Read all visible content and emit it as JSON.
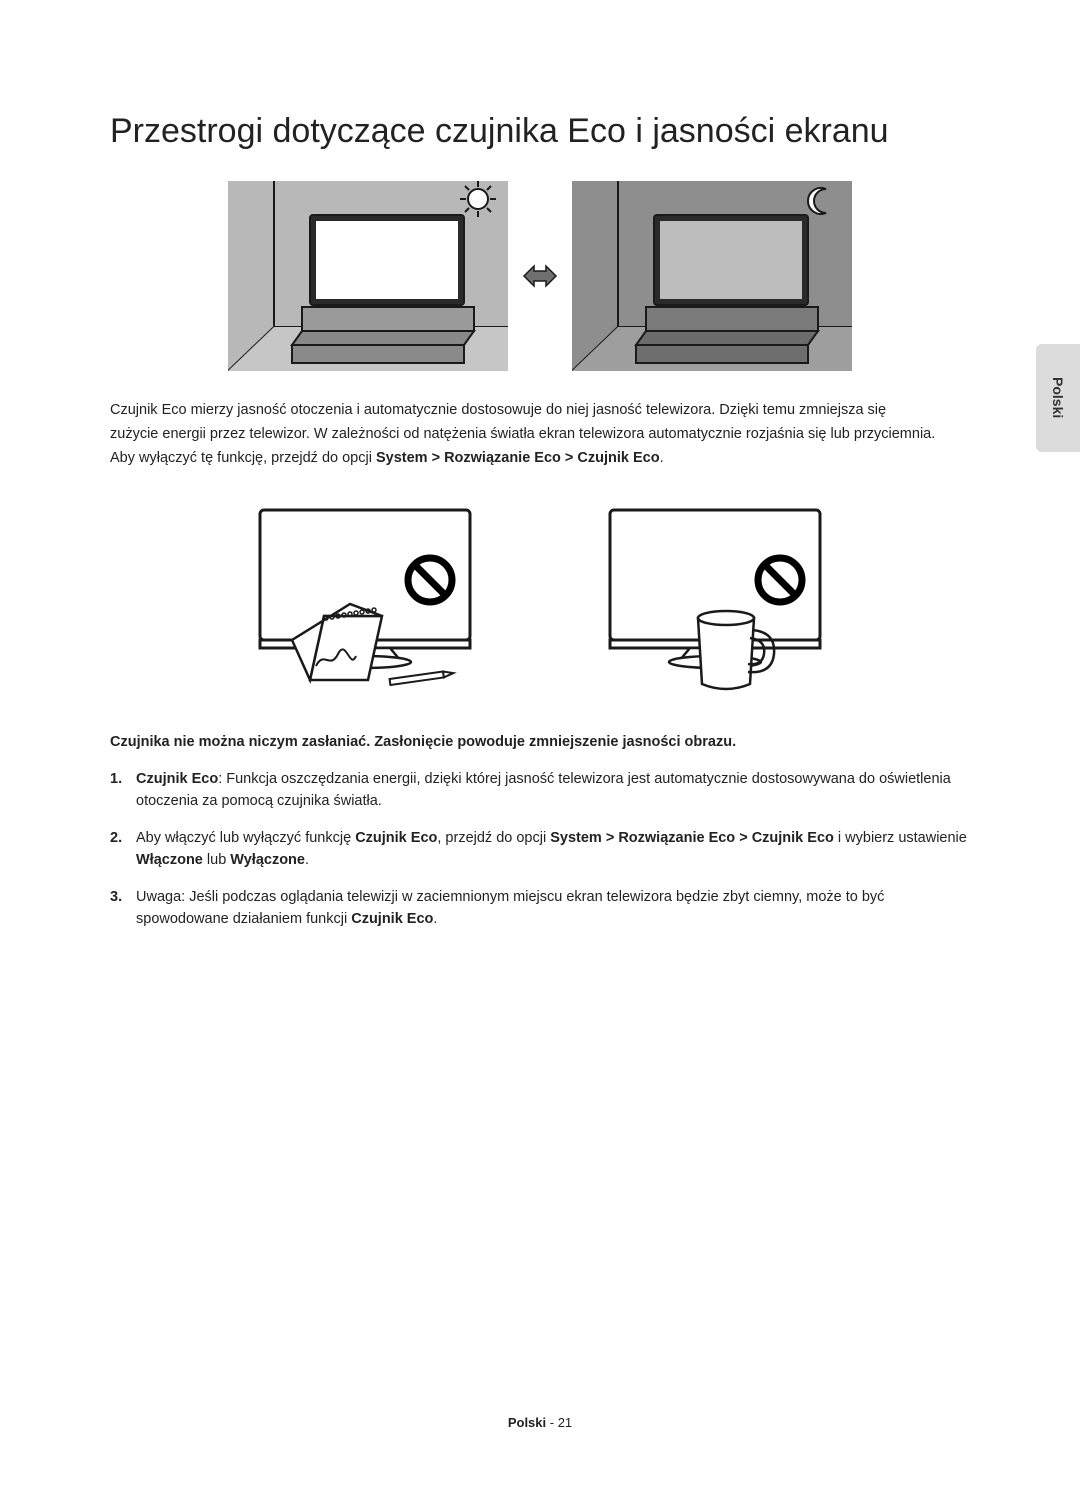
{
  "title": "Przestrogi dotyczące czujnika Eco i jasności ekranu",
  "side_tab": "Polski",
  "para": {
    "l1": "Czujnik Eco mierzy jasność otoczenia i automatycznie dostosowuje do niej jasność telewizora. Dzięki temu zmniejsza się",
    "l2": "zużycie energii przez telewizor. W zależności od natężenia światła ekran telewizora automatycznie rozjaśnia się lub przyciemnia.",
    "l3a": "Aby wyłączyć tę funkcję, przejdź do opcji ",
    "l3b": "System > Rozwiązanie Eco > Czujnik Eco",
    "l3c": "."
  },
  "warn": "Czujnika nie można niczym zasłaniać. Zasłonięcie powoduje zmniejszenie jasności obrazu.",
  "list": [
    {
      "num": "1.",
      "parts": [
        {
          "b": true,
          "t": "Czujnik Eco"
        },
        {
          "b": false,
          "t": ": Funkcja oszczędzania energii, dzięki której jasność telewizora jest automatycznie dostosowywana do oświetlenia otoczenia za pomocą czujnika światła."
        }
      ]
    },
    {
      "num": "2.",
      "parts": [
        {
          "b": false,
          "t": "Aby włączyć lub wyłączyć funkcję "
        },
        {
          "b": true,
          "t": "Czujnik Eco"
        },
        {
          "b": false,
          "t": ", przejdź do opcji "
        },
        {
          "b": true,
          "t": "System > Rozwiązanie Eco > Czujnik Eco"
        },
        {
          "b": false,
          "t": " i wybierz ustawienie "
        },
        {
          "b": true,
          "t": "Włączone"
        },
        {
          "b": false,
          "t": " lub "
        },
        {
          "b": true,
          "t": "Wyłączone"
        },
        {
          "b": false,
          "t": "."
        }
      ]
    },
    {
      "num": "3.",
      "parts": [
        {
          "b": false,
          "t": "Uwaga: Jeśli podczas oglądania telewizji w zaciemnionym miejscu ekran telewizora będzie zbyt ciemny, może to być spowodowane działaniem funkcji "
        },
        {
          "b": true,
          "t": "Czujnik Eco"
        },
        {
          "b": false,
          "t": "."
        }
      ]
    }
  ],
  "footer": {
    "lang": "Polski",
    "sep": " - ",
    "page": "21"
  },
  "colors": {
    "stroke": "#1a1a1a",
    "room_fill": "#b8b8b8",
    "room_dark": "#8e8e8e",
    "tv_fill": "#ffffff",
    "prohibit": "#000000"
  }
}
